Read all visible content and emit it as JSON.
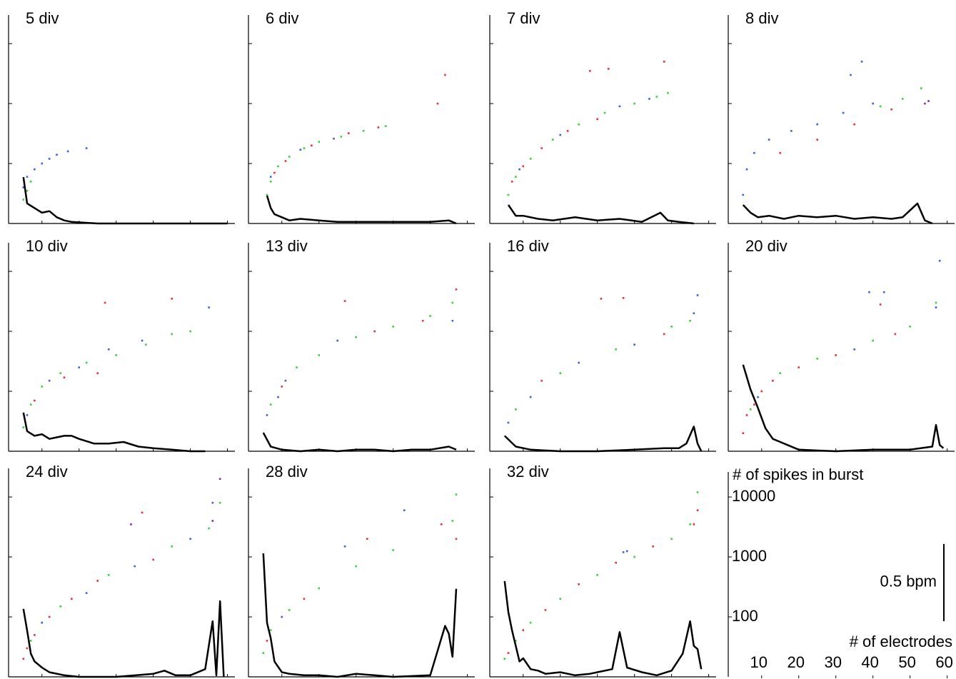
{
  "chart_data": [
    {
      "type": "scatter",
      "title": "5 div",
      "series": [
        {
          "color": "#3a5fe0",
          "x": [
            5,
            6,
            8,
            10,
            12,
            14,
            17,
            22
          ],
          "values": [
            40,
            60,
            80,
            100,
            120,
            140,
            160,
            180
          ]
        },
        {
          "color": "#3ccf3c",
          "x": [
            5,
            6,
            7
          ],
          "values": [
            25,
            35,
            50
          ]
        }
      ],
      "line": {
        "color": "#000000",
        "axis": "y2",
        "x": [
          5,
          6,
          8,
          10,
          12,
          14,
          16,
          18,
          25,
          35,
          45,
          55,
          60
        ],
        "values": [
          0.3,
          0.13,
          0.1,
          0.07,
          0.08,
          0.04,
          0.02,
          0.01,
          0,
          0,
          0,
          0,
          0
        ]
      }
    },
    {
      "type": "scatter",
      "title": "6 div",
      "series": [
        {
          "color": "#3ccf3c",
          "x": [
            6,
            7,
            9,
            12,
            16,
            20,
            26,
            32,
            38
          ],
          "values": [
            30,
            50,
            90,
            130,
            180,
            230,
            280,
            350,
            420
          ]
        },
        {
          "color": "#e8303a",
          "x": [
            8,
            11,
            18,
            28,
            36,
            52,
            54
          ],
          "values": [
            70,
            110,
            200,
            320,
            400,
            1000,
            3000
          ]
        },
        {
          "color": "#3a5fe0",
          "x": [
            7,
            15,
            24
          ],
          "values": [
            60,
            170,
            260
          ]
        }
      ],
      "line": {
        "color": "#000000",
        "axis": "y2",
        "x": [
          6,
          7,
          8,
          10,
          12,
          15,
          20,
          25,
          30,
          40,
          50,
          55,
          57
        ],
        "values": [
          0.18,
          0.1,
          0.06,
          0.04,
          0.02,
          0.03,
          0.02,
          0.01,
          0.01,
          0.01,
          0.01,
          0.02,
          0
        ]
      }
    },
    {
      "type": "scatter",
      "title": "7 div",
      "series": [
        {
          "color": "#3ccf3c",
          "x": [
            6,
            8,
            12,
            18,
            25,
            32,
            40,
            46,
            49
          ],
          "values": [
            30,
            60,
            120,
            250,
            450,
            700,
            1000,
            1300,
            1500
          ]
        },
        {
          "color": "#e8303a",
          "x": [
            7,
            10,
            15,
            22,
            28,
            33,
            30,
            48
          ],
          "values": [
            50,
            90,
            180,
            350,
            3500,
            3800,
            550,
            5000
          ]
        },
        {
          "color": "#3a5fe0",
          "x": [
            9,
            20,
            36,
            44
          ],
          "values": [
            80,
            300,
            900,
            1200
          ]
        }
      ],
      "line": {
        "color": "#000000",
        "axis": "y2",
        "x": [
          6,
          8,
          10,
          14,
          18,
          24,
          30,
          36,
          42,
          47,
          49,
          52,
          56
        ],
        "values": [
          0.12,
          0.05,
          0.05,
          0.03,
          0.02,
          0.04,
          0.02,
          0.03,
          0.01,
          0.07,
          0.02,
          0.01,
          0
        ]
      }
    },
    {
      "type": "scatter",
      "title": "8 div",
      "series": [
        {
          "color": "#3a5fe0",
          "x": [
            5,
            6,
            8,
            12,
            18,
            25,
            32,
            40,
            34,
            37
          ],
          "values": [
            30,
            80,
            150,
            250,
            350,
            450,
            700,
            1000,
            3000,
            5000
          ]
        },
        {
          "color": "#e8303a",
          "x": [
            15,
            25,
            35,
            45
          ],
          "values": [
            150,
            250,
            450,
            800
          ]
        },
        {
          "color": "#3ccf3c",
          "x": [
            42,
            48,
            53
          ],
          "values": [
            900,
            1200,
            1800
          ]
        },
        {
          "color": "#8a2aa0",
          "x": [
            54,
            55
          ],
          "values": [
            1000,
            1100
          ]
        }
      ],
      "line": {
        "color": "#000000",
        "axis": "y2",
        "x": [
          5,
          7,
          9,
          12,
          16,
          20,
          25,
          30,
          35,
          40,
          45,
          48,
          52,
          54,
          56
        ],
        "values": [
          0.12,
          0.07,
          0.04,
          0.05,
          0.03,
          0.05,
          0.04,
          0.05,
          0.03,
          0.04,
          0.03,
          0.04,
          0.13,
          0.02,
          0
        ]
      }
    },
    {
      "type": "scatter",
      "title": "10 div",
      "series": [
        {
          "color": "#3ccf3c",
          "x": [
            5,
            7,
            10,
            15,
            22,
            30,
            38,
            45,
            50
          ],
          "values": [
            25,
            60,
            120,
            200,
            300,
            400,
            600,
            900,
            1000
          ]
        },
        {
          "color": "#3a5fe0",
          "x": [
            6,
            12,
            20,
            28,
            37,
            55
          ],
          "values": [
            40,
            150,
            250,
            500,
            700,
            2500
          ]
        },
        {
          "color": "#e8303a",
          "x": [
            8,
            16,
            25,
            27,
            45
          ],
          "values": [
            70,
            170,
            200,
            3000,
            3500
          ]
        }
      ],
      "line": {
        "color": "#000000",
        "axis": "y2",
        "x": [
          5,
          6,
          8,
          10,
          12,
          14,
          16,
          18,
          20,
          24,
          28,
          32,
          36,
          40,
          45,
          50,
          54
        ],
        "values": [
          0.25,
          0.13,
          0.1,
          0.11,
          0.08,
          0.09,
          0.1,
          0.1,
          0.08,
          0.05,
          0.05,
          0.06,
          0.03,
          0.02,
          0.01,
          0,
          0
        ]
      }
    },
    {
      "type": "scatter",
      "title": "13 div",
      "series": [
        {
          "color": "#3a5fe0",
          "x": [
            6,
            9,
            11,
            25,
            56
          ],
          "values": [
            40,
            80,
            150,
            700,
            1500
          ]
        },
        {
          "color": "#3ccf3c",
          "x": [
            7,
            14,
            20,
            30,
            40,
            50,
            56
          ],
          "values": [
            60,
            250,
            400,
            800,
            1200,
            1800,
            3000
          ]
        },
        {
          "color": "#e8303a",
          "x": [
            10,
            27,
            35,
            48,
            57
          ],
          "values": [
            120,
            3200,
            1000,
            1500,
            5000
          ]
        }
      ],
      "line": {
        "color": "#000000",
        "axis": "y2",
        "x": [
          5,
          7,
          10,
          15,
          20,
          25,
          30,
          35,
          40,
          45,
          50,
          55,
          57
        ],
        "values": [
          0.12,
          0.03,
          0.01,
          0,
          0.01,
          0,
          0.01,
          0.01,
          0,
          0.01,
          0.01,
          0.03,
          0.01
        ]
      }
    },
    {
      "type": "scatter",
      "title": "16 div",
      "series": [
        {
          "color": "#3a5fe0",
          "x": [
            6,
            12,
            25,
            40,
            56,
            57
          ],
          "values": [
            30,
            80,
            300,
            600,
            2000,
            4000
          ]
        },
        {
          "color": "#3ccf3c",
          "x": [
            8,
            20,
            35,
            50,
            55
          ],
          "values": [
            50,
            200,
            500,
            1200,
            1500
          ]
        },
        {
          "color": "#e8303a",
          "x": [
            15,
            31,
            37,
            48
          ],
          "values": [
            150,
            3500,
            3600,
            900
          ]
        }
      ],
      "line": {
        "color": "#000000",
        "axis": "y2",
        "x": [
          5,
          8,
          12,
          20,
          30,
          40,
          48,
          52,
          54,
          56,
          57,
          58
        ],
        "values": [
          0.1,
          0.03,
          0.01,
          0,
          0,
          0.01,
          0.02,
          0.02,
          0.05,
          0.16,
          0.05,
          0
        ]
      }
    },
    {
      "type": "scatter",
      "title": "20 div",
      "series": [
        {
          "color": "#e8303a",
          "x": [
            5,
            6,
            8,
            10,
            13,
            20,
            30,
            42,
            46
          ],
          "values": [
            20,
            40,
            60,
            100,
            150,
            250,
            400,
            2800,
            900
          ]
        },
        {
          "color": "#3ccf3c",
          "x": [
            7,
            15,
            25,
            40,
            50,
            57
          ],
          "values": [
            50,
            200,
            350,
            700,
            1200,
            3000
          ]
        },
        {
          "color": "#3a5fe0",
          "x": [
            9,
            35,
            39,
            43,
            57,
            58
          ],
          "values": [
            80,
            500,
            4500,
            4500,
            2500,
            15000
          ]
        }
      ],
      "line": {
        "color": "#000000",
        "axis": "y2",
        "x": [
          5,
          7,
          9,
          11,
          13,
          15,
          17,
          20,
          30,
          40,
          50,
          56,
          57,
          58,
          59
        ],
        "values": [
          0.56,
          0.4,
          0.28,
          0.15,
          0.08,
          0.06,
          0.04,
          0.01,
          0,
          0.01,
          0.01,
          0.03,
          0.17,
          0.04,
          0.02
        ]
      }
    },
    {
      "type": "scatter",
      "title": "24 div",
      "series": [
        {
          "color": "#e8303a",
          "x": [
            5,
            6,
            8,
            12,
            18,
            25,
            37,
            40
          ],
          "values": [
            20,
            30,
            50,
            100,
            200,
            400,
            5500,
            900
          ]
        },
        {
          "color": "#3ccf3c",
          "x": [
            7,
            15,
            28,
            45,
            55,
            58
          ],
          "values": [
            40,
            150,
            500,
            1500,
            3000,
            8000
          ]
        },
        {
          "color": "#3a5fe0",
          "x": [
            10,
            22,
            35,
            50,
            56
          ],
          "values": [
            80,
            250,
            700,
            2000,
            8000
          ]
        },
        {
          "color": "#8a2aa0",
          "x": [
            34,
            56,
            58
          ],
          "values": [
            3500,
            4000,
            20000
          ]
        }
      ],
      "line": {
        "color": "#000000",
        "axis": "y2",
        "x": [
          5,
          6,
          7,
          8,
          10,
          12,
          16,
          20,
          30,
          40,
          43,
          46,
          50,
          54,
          56,
          57,
          58,
          59
        ],
        "values": [
          0.44,
          0.3,
          0.15,
          0.1,
          0.06,
          0.03,
          0.01,
          0,
          0,
          0.02,
          0.04,
          0.01,
          0.01,
          0.05,
          0.36,
          0.01,
          0.49,
          0
        ]
      }
    },
    {
      "type": "scatter",
      "title": "28 div",
      "series": [
        {
          "color": "#3ccf3c",
          "x": [
            5,
            7,
            12,
            20,
            30,
            40,
            57,
            56
          ],
          "values": [
            25,
            60,
            130,
            300,
            700,
            1300,
            11000,
            4000
          ]
        },
        {
          "color": "#e8303a",
          "x": [
            6,
            16,
            33,
            53,
            57
          ],
          "values": [
            40,
            200,
            2000,
            3500,
            2000
          ]
        },
        {
          "color": "#3a5fe0",
          "x": [
            10,
            27,
            43
          ],
          "values": [
            100,
            1500,
            6000
          ]
        }
      ],
      "line": {
        "color": "#000000",
        "axis": "y2",
        "x": [
          5,
          6,
          7,
          8,
          10,
          12,
          16,
          20,
          25,
          30,
          35,
          40,
          50,
          54,
          55,
          56,
          57
        ],
        "values": [
          0.8,
          0.35,
          0.25,
          0.1,
          0.03,
          0.02,
          0.01,
          0.01,
          0,
          0.02,
          0.01,
          0,
          0.01,
          0.33,
          0.28,
          0.13,
          0.57
        ]
      }
    },
    {
      "type": "scatter",
      "title": "32 div",
      "series": [
        {
          "color": "#3ccf3c",
          "x": [
            5,
            8,
            12,
            20,
            30,
            40,
            50,
            55,
            57
          ],
          "values": [
            20,
            40,
            80,
            200,
            500,
            1000,
            2000,
            3500,
            12000
          ]
        },
        {
          "color": "#e8303a",
          "x": [
            6,
            10,
            16,
            25,
            35,
            45,
            57,
            56
          ],
          "values": [
            25,
            60,
            130,
            350,
            800,
            1500,
            6000,
            3500
          ]
        },
        {
          "color": "#3a5fe0",
          "x": [
            37,
            38
          ],
          "values": [
            1200,
            1250
          ]
        }
      ],
      "line": {
        "color": "#000000",
        "axis": "y2",
        "x": [
          5,
          6,
          7,
          8,
          9,
          10,
          12,
          14,
          16,
          20,
          24,
          28,
          30,
          34,
          36,
          38,
          42,
          46,
          50,
          53,
          55,
          56,
          57,
          58
        ],
        "values": [
          0.62,
          0.42,
          0.3,
          0.2,
          0.1,
          0.12,
          0.05,
          0.04,
          0.02,
          0.03,
          0.01,
          0.02,
          0.03,
          0.05,
          0.29,
          0.06,
          0.03,
          0.01,
          0.04,
          0.15,
          0.36,
          0.2,
          0.18,
          0.05
        ]
      }
    }
  ],
  "axes_panel": {
    "ylabel": "# of spikes in burst",
    "log_y": true,
    "ylim": [
      10,
      30000
    ],
    "yticks": [
      100,
      1000,
      10000
    ],
    "xlabel": "# of electrodes",
    "xlim": [
      1,
      62
    ],
    "xticks": [
      10,
      20,
      30,
      40,
      50,
      60
    ],
    "y2lim": [
      0,
      1.35
    ],
    "scale_bar": {
      "value": 0.5,
      "label": "0.5 bpm"
    }
  }
}
